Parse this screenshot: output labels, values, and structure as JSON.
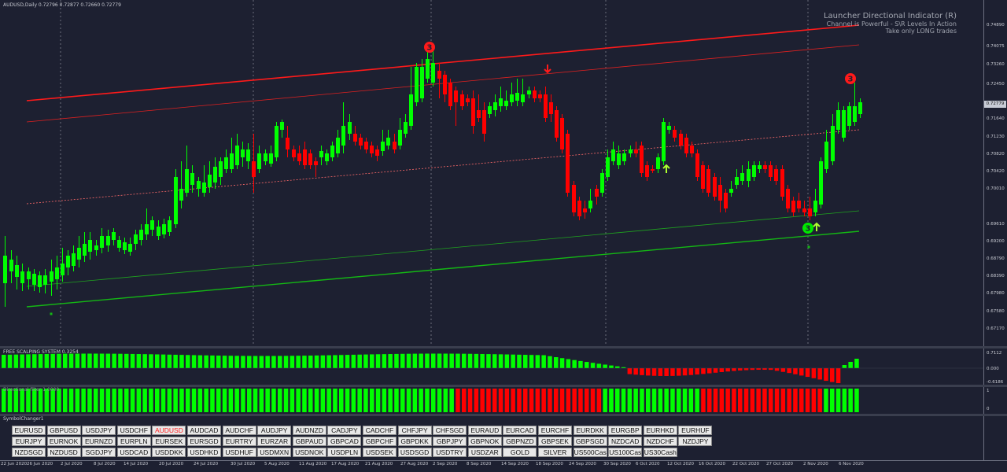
{
  "chart_title": "AUDUSD,Daily  0.72796 0.72877 0.72660 0.72779",
  "indicator": {
    "name": "Launcher Directional Indicator (R)",
    "line1": "Channel is Powerful - S\\R Levels In Action",
    "line2": "Take only LONG trades"
  },
  "subwindow1_title": "FREE SCALPING SYSTEM 0.3254",
  "subwindow2_title": "Directional filter 1.0000",
  "subwindow3_title": "SymbolChanger1",
  "current_price": "0.72779",
  "price_axis": [
    "0.74890",
    "0.74075",
    "0.73260",
    "0.72450",
    "0.71640",
    "0.71230",
    "0.70820",
    "0.70420",
    "0.70010",
    "0.69610",
    "0.69200",
    "0.68790",
    "0.68390",
    "0.67980",
    "0.67580",
    "0.67170"
  ],
  "osc_axis": [
    "0.7112",
    "0.000",
    "-0.6186"
  ],
  "filter_axis": [
    "1",
    "0"
  ],
  "dates": [
    "22 Jun 2020",
    "26 Jun 2020",
    "2 Jul 2020",
    "8 Jul 2020",
    "14 Jul 2020",
    "20 Jul 2020",
    "24 Jul 2020",
    "30 Jul 2020",
    "5 Aug 2020",
    "11 Aug 2020",
    "17 Aug 2020",
    "21 Aug 2020",
    "27 Aug 2020",
    "2 Sep 2020",
    "8 Sep 2020",
    "14 Sep 2020",
    "18 Sep 2020",
    "24 Sep 2020",
    "30 Sep 2020",
    "6 Oct 2020",
    "12 Oct 2020",
    "16 Oct 2020",
    "22 Oct 2020",
    "27 Oct 2020",
    "2 Nov 2020",
    "6 Nov 2020"
  ],
  "symbols": [
    [
      "EURUSD",
      "GBPUSD",
      "USDJPY",
      "USDCHF",
      "AUDUSD",
      "AUDCAD",
      "AUDCHF",
      "AUDJPY",
      "AUDNZD",
      "CADJPY",
      "CADCHF",
      "CHFJPY",
      "CHFSGD",
      "EURAUD",
      "EURCAD",
      "EURCHF",
      "EURDKK",
      "EURGBP",
      "EURHKD",
      "EURHUF"
    ],
    [
      "EURJPY",
      "EURNOK",
      "EURNZD",
      "EURPLN",
      "EURSEK",
      "EURSGD",
      "EURTRY",
      "EURZAR",
      "GBPAUD",
      "GBPCAD",
      "GBPCHF",
      "GBPDKK",
      "GBPJPY",
      "GBPNOK",
      "GBPNZD",
      "GBPSEK",
      "GBPSGD",
      "NZDCAD",
      "NZDCHF",
      "NZDJPY"
    ],
    [
      "NZDSGD",
      "NZDUSD",
      "SGDJPY",
      "USDCAD",
      "USDDKK",
      "USDHKD",
      "USDHUF",
      "USDMXN",
      "USDNOK",
      "USDPLN",
      "USDSEK",
      "USDSGD",
      "USDTRY",
      "USDZAR",
      "GOLD",
      "SILVER",
      "US500Cash",
      "US100Cash",
      "US30Cash"
    ]
  ],
  "active_symbol": "AUDUSD",
  "signal_labels": [
    "3",
    "3",
    "3"
  ],
  "colors": {
    "bull": "#00ff00",
    "bear": "#ff0000",
    "bg": "#1d2031",
    "arrow_up": "#adff2f"
  }
}
